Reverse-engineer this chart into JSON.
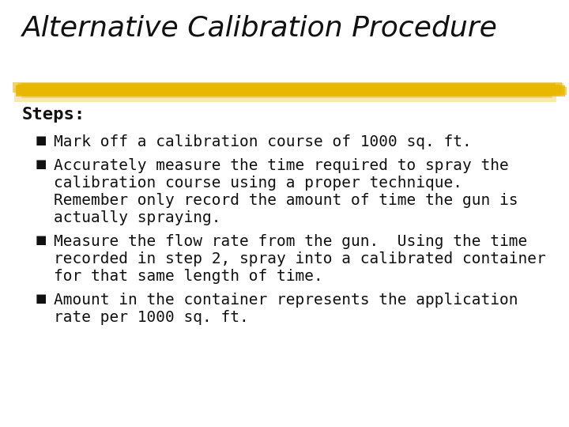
{
  "title": "Alternative Calibration Procedure",
  "title_fontsize": 26,
  "title_style": "italic",
  "title_font": "DejaVu Sans",
  "background_color": "#ffffff",
  "text_color": "#111111",
  "highlight_color": "#e8b800",
  "steps_label": "Steps:",
  "steps_fontsize": 16,
  "bullet_fontsize": 14,
  "bullet_font": "monospace",
  "bullets": [
    {
      "lines": [
        "Mark off a calibration course of 1000 sq. ft."
      ]
    },
    {
      "lines": [
        "Accurately measure the time required to spray the",
        "calibration course using a proper technique.",
        "Remember only record the amount of time the gun is",
        "actually spraying."
      ]
    },
    {
      "lines": [
        "Measure the flow rate from the gun.  Using the time",
        "recorded in step 2, spray into a calibrated container",
        "for that same length of time."
      ]
    },
    {
      "lines": [
        "Amount in the container represents the application",
        "rate per 1000 sq. ft."
      ]
    }
  ]
}
